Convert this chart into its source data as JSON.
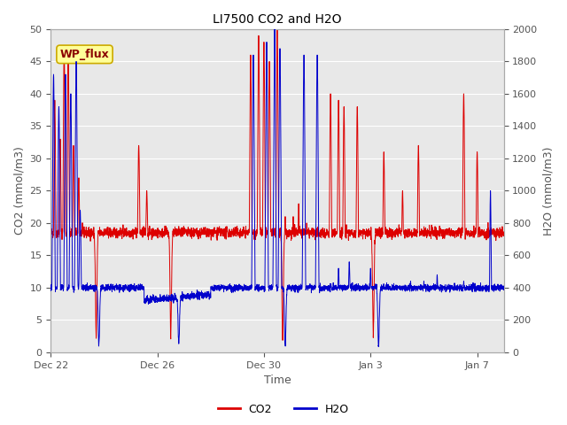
{
  "title": "LI7500 CO2 and H2O",
  "xlabel": "Time",
  "ylabel_left": "CO2 (mmol/m3)",
  "ylabel_right": "H2O (mmol/m3)",
  "ylim_left": [
    0,
    50
  ],
  "ylim_right": [
    0,
    2000
  ],
  "yticks_left": [
    0,
    5,
    10,
    15,
    20,
    25,
    30,
    35,
    40,
    45,
    50
  ],
  "yticks_right": [
    0,
    200,
    400,
    600,
    800,
    1000,
    1200,
    1400,
    1600,
    1800,
    2000
  ],
  "xtick_labels": [
    "Dec 22",
    "Dec 26",
    "Dec 30",
    "Jan 3",
    "Jan 7"
  ],
  "xtick_positions": [
    0,
    4,
    8,
    12,
    16
  ],
  "xlim": [
    0,
    17
  ],
  "co2_color": "#dd0000",
  "h2o_color": "#0000cc",
  "fig_bg_color": "#ffffff",
  "plot_bg_color": "#e8e8e8",
  "grid_color": "#ffffff",
  "legend_co2": "CO2",
  "legend_h2o": "H2O",
  "annotation_text": "WP_flux",
  "annotation_bg": "#ffff99",
  "annotation_border": "#ccaa00",
  "tick_color": "#555555",
  "label_fontsize": 9,
  "tick_fontsize": 8,
  "title_fontsize": 10,
  "legend_fontsize": 9,
  "total_days": 17,
  "seed": 42
}
